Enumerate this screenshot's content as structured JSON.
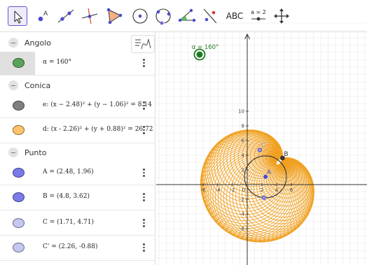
{
  "toolbar": {
    "text_tool_label": "ABC",
    "slider_tool_label": "a = 2"
  },
  "algebra": {
    "groups": [
      {
        "label": "Angolo"
      },
      {
        "label": "Conica"
      },
      {
        "label": "Punto"
      }
    ],
    "rows": [
      {
        "expr": "α = 160°",
        "color": "#5aa35a"
      },
      {
        "expr": "e: (x − 2.48)² + (y − 1.06)² = 8.14",
        "color": "#808080"
      },
      {
        "expr": "d: (x - 2.26)² + (y + 0.88)² = 26.72",
        "color": "#ffc36a"
      },
      {
        "expr": "A = (2.48, 1.96)",
        "color": "#7b7bea"
      },
      {
        "expr": "B = (4.8, 3.62)",
        "color": "#7b7bea"
      },
      {
        "expr": "C = (1.71, 4.71)",
        "color": "#c6c6f2"
      },
      {
        "expr": "C' = (2.26, -0.88)",
        "color": "#c6c6f2"
      }
    ]
  },
  "graphics": {
    "slider_label": "α = 160°",
    "points": {
      "A": "A",
      "B": "B",
      "C": "C"
    },
    "x_ticks": [
      "-6",
      "-4",
      "-2",
      "0",
      "2",
      "4",
      "6"
    ],
    "y_ticks": [
      "10",
      "8",
      "6",
      "4",
      "2",
      "-2",
      "-4",
      "-6"
    ],
    "colors": {
      "curve": "#f0a020",
      "circle": "#333333",
      "point": "#4b4bd0",
      "slider": "#1e7a1e",
      "axis": "#333333",
      "grid": "#e8e8e8"
    }
  }
}
